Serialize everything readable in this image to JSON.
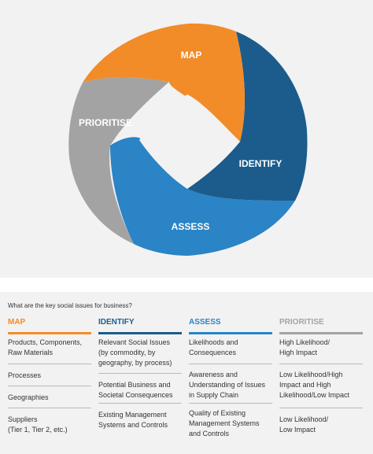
{
  "diagram": {
    "segments": [
      {
        "label": "MAP",
        "color": "#f28c28"
      },
      {
        "label": "IDENTIFY",
        "color": "#1b5c8c"
      },
      {
        "label": "ASSESS",
        "color": "#2a84c6"
      },
      {
        "label": "PRIORITISE",
        "color": "#a3a3a3"
      }
    ]
  },
  "table": {
    "question": "What are the key social issues for business?",
    "columns": [
      {
        "header": "MAP",
        "color": "#f28c28",
        "cells": [
          {
            "lines": [
              "Products, Components,",
              "Raw Materials"
            ]
          },
          {
            "lines": [
              "Processes"
            ]
          },
          {
            "lines": [
              "Geographies"
            ]
          },
          {
            "lines": [
              "Suppliers",
              "(Tier 1, Tier 2, etc.)"
            ]
          }
        ]
      },
      {
        "header": "IDENTIFY",
        "color": "#1b5c8c",
        "cells": [
          {
            "lines": [
              "Relevant Social Issues",
              "(by commodity, by",
              "geography, by process)"
            ]
          },
          {
            "lines": [
              "Potential Business and",
              "Societal Consequences"
            ]
          },
          {
            "lines": [
              "Existing Management",
              "Systems and Controls"
            ]
          }
        ]
      },
      {
        "header": "ASSESS",
        "color": "#2a84c6",
        "cells": [
          {
            "lines": [
              "Likelihoods and",
              "Consequences"
            ]
          },
          {
            "lines": [
              "Awareness and",
              "Understanding of Issues",
              "in Supply Chain"
            ]
          },
          {
            "lines": [
              "Quality of Existing",
              "Management Systems",
              "and Controls"
            ]
          }
        ]
      },
      {
        "header": "PRIORITISE",
        "color": "#a3a3a3",
        "cells": [
          {
            "lines": [
              "High Likelihood/",
              "High Impact"
            ]
          },
          {
            "lines": [
              "Low Likelihood/High",
              "Impact and High",
              "Likelihood/Low Impact"
            ]
          },
          {
            "lines": [
              "Low Likelihood/",
              "Low Impact"
            ]
          }
        ]
      }
    ]
  }
}
